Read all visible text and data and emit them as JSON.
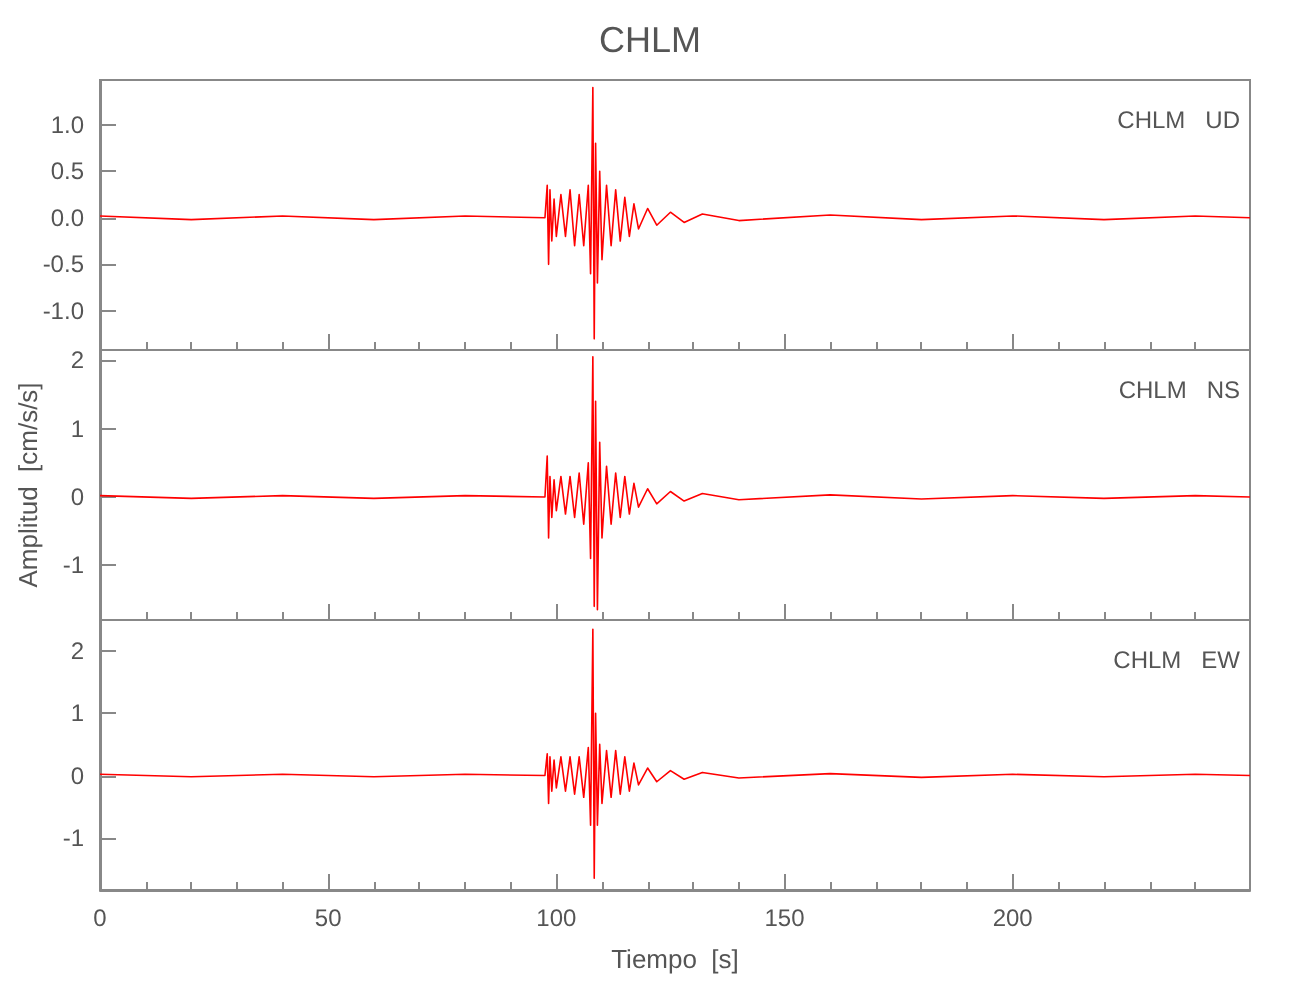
{
  "chart_data": [
    {
      "type": "line",
      "title": "CHLM",
      "annotations": [
        "CHLM   UD"
      ],
      "tick_labels": "y",
      "x": [
        0,
        20,
        40,
        60,
        80,
        97.5,
        98,
        98.3,
        98.6,
        99,
        99.5,
        100,
        101,
        102,
        103,
        104,
        105,
        106,
        107,
        107.5,
        108,
        108.3,
        108.6,
        109,
        109.5,
        110,
        111,
        112,
        113,
        114,
        115,
        116,
        117,
        118,
        120,
        122,
        125,
        128,
        132,
        140,
        160,
        180,
        200,
        220,
        240,
        252
      ],
      "series": [
        {
          "color": "#ff0000",
          "values": [
            0.02,
            -0.02,
            0.02,
            -0.02,
            0.02,
            0,
            0.35,
            -0.5,
            0.3,
            -0.25,
            0.2,
            -0.2,
            0.25,
            -0.2,
            0.3,
            -0.3,
            0.25,
            -0.3,
            0.35,
            -0.6,
            1.4,
            -1.3,
            0.8,
            -0.7,
            0.5,
            -0.45,
            0.35,
            -0.3,
            0.3,
            -0.25,
            0.22,
            -0.2,
            0.15,
            -0.12,
            0.1,
            -0.08,
            0.06,
            -0.05,
            0.04,
            -0.03,
            0.03,
            -0.02,
            0.02,
            -0.02,
            0.02,
            0
          ]
        }
      ],
      "xlim": [
        0,
        252
      ],
      "xticks": [
        0,
        50,
        100,
        150,
        200
      ],
      "ylim": [
        -1.42,
        1.48
      ],
      "yticks": [
        {
          "value": -1,
          "label": "-1.0"
        },
        {
          "value": -0.5,
          "label": "-0.5"
        },
        {
          "value": 0,
          "label": "0.0"
        },
        {
          "value": 0.5,
          "label": "0.5"
        },
        {
          "value": 1,
          "label": "1.0"
        }
      ]
    },
    {
      "type": "line",
      "ylabel": "Amplitud  [cm/s/s]",
      "annotations": [
        "CHLM   NS"
      ],
      "tick_labels": "y",
      "x": [
        0,
        20,
        40,
        60,
        80,
        97.5,
        98,
        98.3,
        98.6,
        99,
        99.5,
        100,
        101,
        102,
        103,
        104,
        105,
        106,
        107,
        107.5,
        108,
        108.3,
        108.6,
        109,
        109.5,
        110,
        111,
        112,
        113,
        114,
        115,
        116,
        117,
        118,
        120,
        122,
        125,
        128,
        132,
        140,
        160,
        180,
        200,
        220,
        240,
        252
      ],
      "series": [
        {
          "color": "#ff0000",
          "values": [
            0.02,
            -0.02,
            0.02,
            -0.02,
            0.02,
            0,
            0.6,
            -0.6,
            0.3,
            -0.3,
            0.25,
            -0.2,
            0.3,
            -0.25,
            0.3,
            -0.3,
            0.35,
            -0.4,
            0.5,
            -0.9,
            2.05,
            -1.6,
            1.4,
            -1.65,
            0.8,
            -0.6,
            0.45,
            -0.4,
            0.35,
            -0.3,
            0.3,
            -0.25,
            0.2,
            -0.15,
            0.12,
            -0.1,
            0.08,
            -0.06,
            0.05,
            -0.04,
            0.03,
            -0.03,
            0.02,
            -0.02,
            0.02,
            0
          ]
        }
      ],
      "xlim": [
        0,
        252
      ],
      "xticks": [
        0,
        50,
        100,
        150,
        200
      ],
      "ylim": [
        -1.8,
        2.15
      ],
      "yticks": [
        -1,
        0,
        1,
        2
      ]
    },
    {
      "type": "line",
      "xlabel": "Tiempo  [s]",
      "annotations": [
        "CHLM   EW"
      ],
      "x": [
        0,
        20,
        40,
        60,
        80,
        97.5,
        98,
        98.3,
        98.6,
        99,
        99.5,
        100,
        101,
        102,
        103,
        104,
        105,
        106,
        107,
        107.5,
        108,
        108.3,
        108.6,
        109,
        109.5,
        110,
        111,
        112,
        113,
        114,
        115,
        116,
        117,
        118,
        120,
        122,
        125,
        128,
        132,
        140,
        160,
        180,
        200,
        220,
        240,
        252
      ],
      "series": [
        {
          "color": "#ff0000",
          "values": [
            0.02,
            -0.02,
            0.02,
            -0.02,
            0.02,
            0,
            0.35,
            -0.45,
            0.3,
            -0.25,
            0.25,
            -0.2,
            0.3,
            -0.25,
            0.3,
            -0.3,
            0.3,
            -0.35,
            0.45,
            -0.8,
            2.35,
            -1.65,
            1.0,
            -0.8,
            0.5,
            -0.45,
            0.4,
            -0.35,
            0.4,
            -0.3,
            0.3,
            -0.25,
            0.2,
            -0.15,
            0.12,
            -0.1,
            0.08,
            -0.06,
            0.05,
            -0.04,
            0.03,
            -0.03,
            0.02,
            -0.02,
            0.02,
            0
          ]
        }
      ],
      "xlim": [
        0,
        252
      ],
      "xticks": [
        0,
        50,
        100,
        150,
        200
      ],
      "ylim": [
        -1.84,
        2.5
      ],
      "yticks": [
        -1,
        0,
        1,
        2
      ]
    }
  ]
}
